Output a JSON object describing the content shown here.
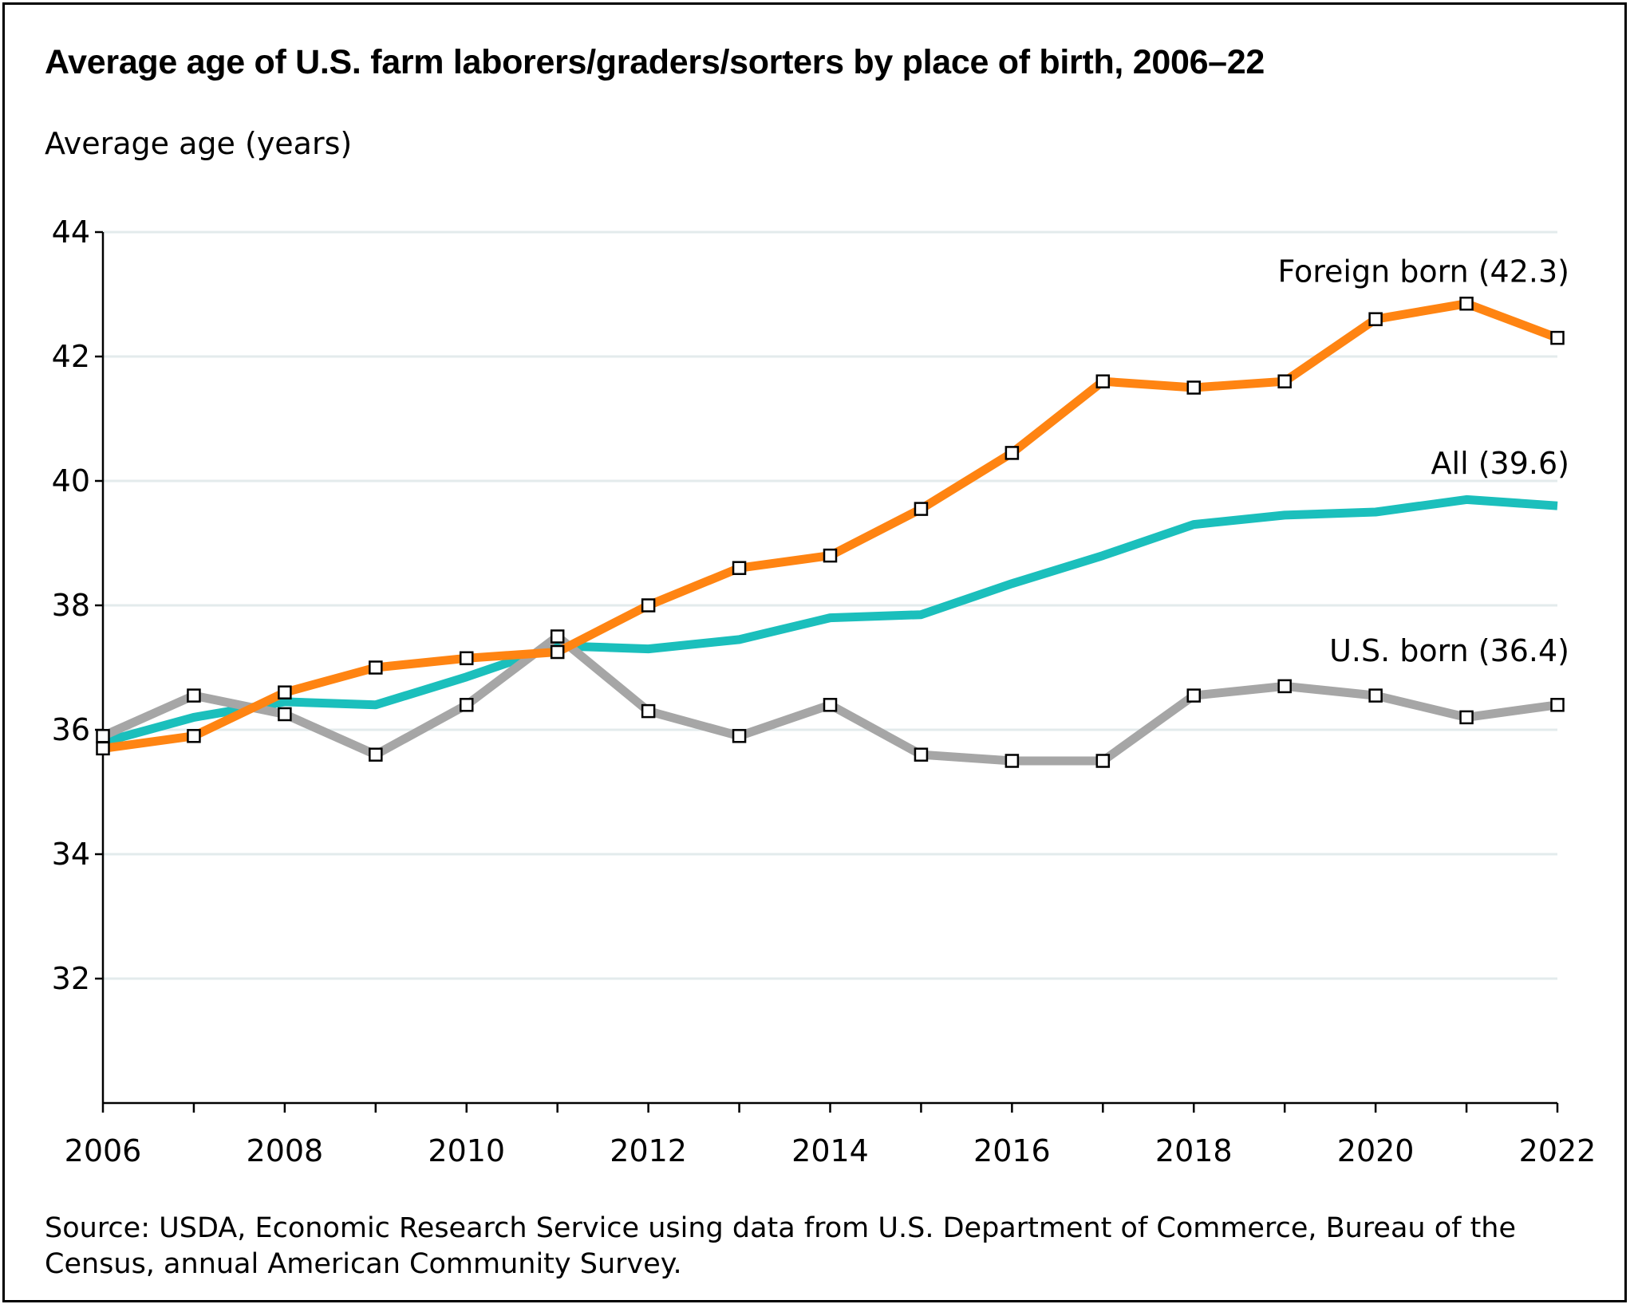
{
  "chart_data": {
    "type": "line",
    "title": "Average age of U.S. farm laborers/graders/sorters by place of birth, 2006–22",
    "ylabel": "Average age (years)",
    "xlabel": "",
    "x": [
      2006,
      2007,
      2008,
      2009,
      2010,
      2011,
      2012,
      2013,
      2014,
      2015,
      2016,
      2017,
      2018,
      2019,
      2020,
      2021,
      2022
    ],
    "xticks": [
      "2006",
      "2008",
      "2010",
      "2012",
      "2014",
      "2016",
      "2018",
      "2020",
      "2022"
    ],
    "xlim": [
      2006,
      2022
    ],
    "yticks": [
      "32",
      "34",
      "36",
      "38",
      "40",
      "42",
      "44"
    ],
    "ylim": [
      30,
      44
    ],
    "grid": true,
    "series": [
      {
        "name": "Foreign born",
        "label": "Foreign born (42.3)",
        "color": "#FF8412",
        "markers": true,
        "values": [
          35.7,
          35.9,
          36.6,
          37.0,
          37.15,
          37.25,
          38.0,
          38.6,
          38.8,
          39.55,
          40.45,
          41.6,
          41.5,
          41.6,
          42.6,
          42.85,
          42.3
        ]
      },
      {
        "name": "All",
        "label": "All (39.6)",
        "color": "#1BBFBC",
        "markers": false,
        "values": [
          35.8,
          36.2,
          36.45,
          36.4,
          36.85,
          37.35,
          37.3,
          37.45,
          37.8,
          37.85,
          38.35,
          38.8,
          39.3,
          39.45,
          39.5,
          39.7,
          39.6
        ]
      },
      {
        "name": "U.S. born",
        "label": "U.S. born (36.4)",
        "color": "#A6A6A6",
        "markers": true,
        "values": [
          35.9,
          36.55,
          36.25,
          35.6,
          36.4,
          37.5,
          36.3,
          35.9,
          36.4,
          35.6,
          35.5,
          35.5,
          36.55,
          36.7,
          36.55,
          36.2,
          36.4
        ]
      }
    ],
    "source": "Source: USDA, Economic Research Service using data from U.S. Department of Commerce, Bureau of the Census, annual American Community Survey."
  }
}
